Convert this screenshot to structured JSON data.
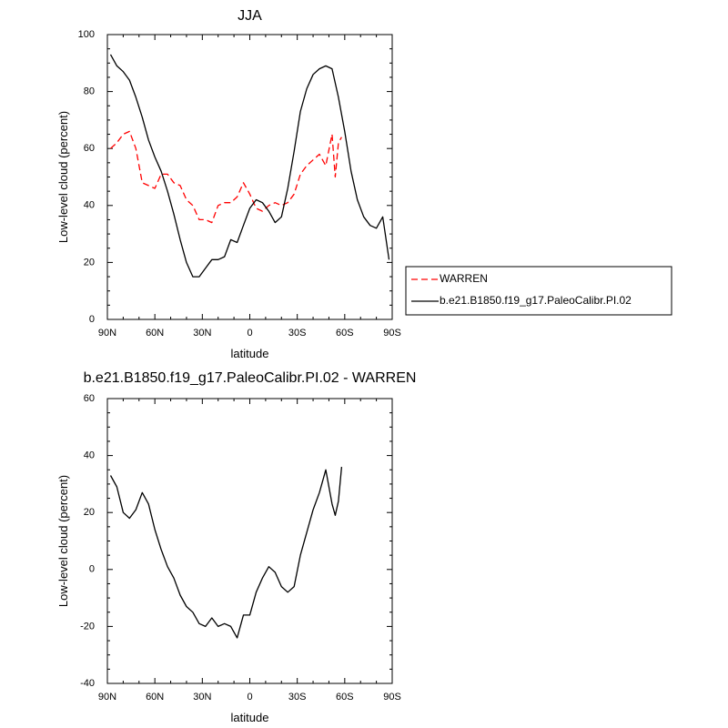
{
  "chart_data": [
    {
      "type": "line",
      "title": "JJA",
      "xlabel": "latitude",
      "ylabel": "Low-level cloud (percent)",
      "xticks": [
        "90N",
        "60N",
        "30N",
        "0",
        "30S",
        "60S",
        "90S"
      ],
      "xlim": [
        90,
        -90
      ],
      "ylim": [
        0,
        100
      ],
      "yticks": [
        "0",
        "20",
        "40",
        "60",
        "80",
        "100"
      ],
      "legend": "right",
      "series": [
        {
          "name": "WARREN",
          "color": "#ff0000",
          "dash": "dashed",
          "x": [
            88,
            84,
            80,
            76,
            72,
            68,
            64,
            60,
            56,
            52,
            48,
            44,
            40,
            36,
            32,
            28,
            24,
            20,
            16,
            12,
            8,
            4,
            0,
            -4,
            -8,
            -12,
            -16,
            -20,
            -24,
            -28,
            -32,
            -36,
            -40,
            -44,
            -48,
            -52,
            -54,
            -56,
            -58
          ],
          "y": [
            60,
            62,
            65,
            66,
            60,
            48,
            47,
            46,
            51,
            51,
            48,
            47,
            42,
            40,
            35,
            35,
            34,
            40,
            41,
            41,
            43,
            48,
            44,
            39,
            38,
            40,
            41,
            40,
            41,
            44,
            51,
            54,
            56,
            58,
            54,
            65,
            50,
            62,
            64
          ]
        },
        {
          "name": "b.e21.B1850.f19_g17.PaleoCalibr.PI.02",
          "color": "#000000",
          "dash": "solid",
          "x": [
            88,
            84,
            80,
            76,
            72,
            68,
            64,
            60,
            56,
            52,
            48,
            44,
            40,
            36,
            32,
            28,
            24,
            20,
            16,
            12,
            8,
            4,
            0,
            -4,
            -8,
            -12,
            -16,
            -20,
            -24,
            -28,
            -32,
            -36,
            -40,
            -44,
            -48,
            -52,
            -56,
            -60,
            -64,
            -68,
            -72,
            -76,
            -80,
            -84,
            -88
          ],
          "y": [
            93,
            89,
            87,
            84,
            78,
            71,
            63,
            57,
            52,
            45,
            37,
            28,
            20,
            15,
            15,
            18,
            21,
            21,
            22,
            28,
            27,
            33,
            39,
            42,
            41,
            38,
            34,
            36,
            46,
            59,
            73,
            81,
            86,
            88,
            89,
            88,
            78,
            66,
            52,
            42,
            36,
            33,
            32,
            36,
            21
          ]
        }
      ]
    },
    {
      "type": "line",
      "title": "b.e21.B1850.f19_g17.PaleoCalibr.PI.02 - WARREN",
      "xlabel": "latitude",
      "ylabel": "Low-level cloud (percent)",
      "xticks": [
        "90N",
        "60N",
        "30N",
        "0",
        "30S",
        "60S",
        "90S"
      ],
      "xlim": [
        90,
        -90
      ],
      "ylim": [
        -40,
        60
      ],
      "yticks": [
        "-40",
        "-20",
        "0",
        "20",
        "40",
        "60"
      ],
      "series": [
        {
          "color": "#000000",
          "dash": "solid",
          "x": [
            88,
            84,
            80,
            76,
            72,
            68,
            64,
            60,
            56,
            52,
            48,
            44,
            40,
            36,
            32,
            28,
            24,
            20,
            16,
            12,
            8,
            4,
            0,
            -4,
            -8,
            -12,
            -16,
            -20,
            -24,
            -28,
            -32,
            -36,
            -40,
            -44,
            -48,
            -52,
            -54,
            -56,
            -58
          ],
          "y": [
            33,
            29,
            20,
            18,
            21,
            27,
            23,
            14,
            7,
            1,
            -3,
            -9,
            -13,
            -15,
            -19,
            -20,
            -17,
            -20,
            -19,
            -20,
            -24,
            -16,
            -16,
            -8,
            -3,
            1,
            -1,
            -6,
            -8,
            -6,
            5,
            13,
            21,
            27,
            35,
            23,
            19,
            24,
            36
          ]
        }
      ]
    }
  ]
}
